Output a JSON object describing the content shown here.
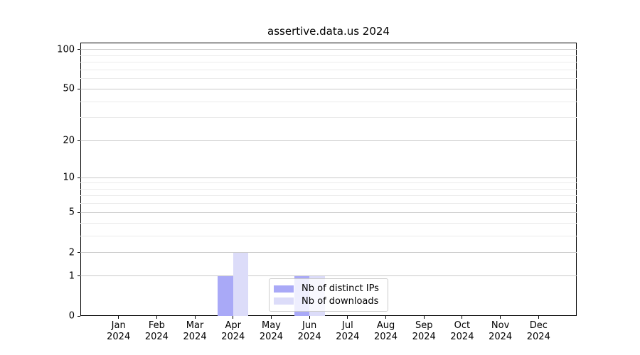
{
  "figure": {
    "background": "#ffffff"
  },
  "chart_data": {
    "type": "bar",
    "title": "assertive.data.us 2024",
    "categories": [
      "Jan",
      "Feb",
      "Mar",
      "Apr",
      "May",
      "Jun",
      "Jul",
      "Aug",
      "Sep",
      "Oct",
      "Nov",
      "Dec"
    ],
    "category_year": "2024",
    "series": [
      {
        "name": "Nb of distinct IPs",
        "color": "#a9a9f7",
        "values": [
          0,
          0,
          0,
          1,
          0,
          1,
          0,
          0,
          0,
          0,
          0,
          0
        ]
      },
      {
        "name": "Nb of downloads",
        "color": "#dcdcf9",
        "values": [
          0,
          0,
          0,
          2,
          0,
          1,
          0,
          0,
          0,
          0,
          0,
          0
        ]
      }
    ],
    "xlabel": "",
    "ylabel": "",
    "y_scale": "log1p",
    "ylim": [
      0,
      113
    ],
    "y_major_ticks": [
      0,
      1,
      2,
      5,
      10,
      20,
      50,
      100
    ],
    "y_minor_ticks": [
      3,
      4,
      6,
      7,
      8,
      9,
      30,
      40,
      60,
      70,
      80,
      90
    ],
    "grid": true,
    "legend_position": "lower-center"
  },
  "colors": {
    "major_grid": "#c9c9c9",
    "minor_grid": "#ebebeb",
    "axis": "#000000",
    "legend_border": "#cccccc",
    "legend_background": "rgba(255,255,255,0.8)"
  }
}
